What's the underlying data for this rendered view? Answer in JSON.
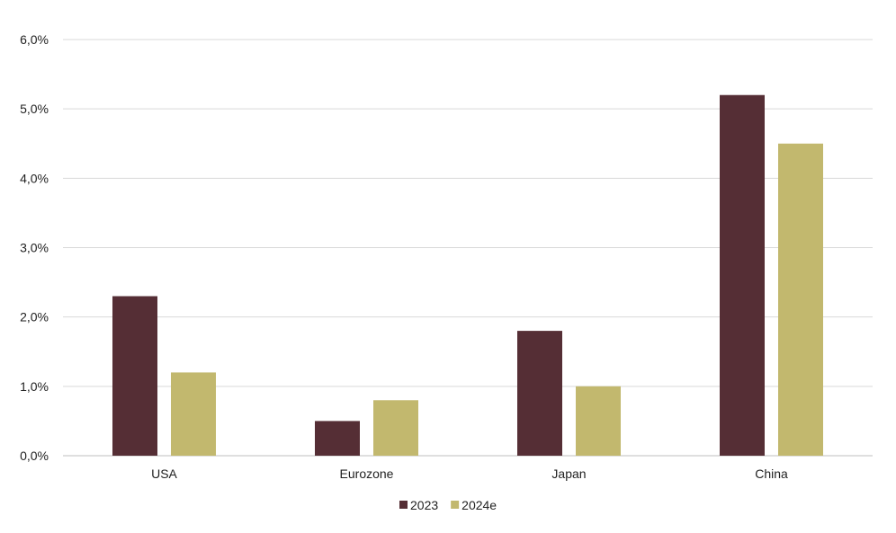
{
  "chart_data": {
    "type": "bar",
    "title": "",
    "xlabel": "",
    "ylabel": "",
    "categories": [
      "USA",
      "Eurozone",
      "Japan",
      "China"
    ],
    "series": [
      {
        "name": "2023",
        "values": [
          2.3,
          0.5,
          1.8,
          5.2
        ],
        "color": "#552e35"
      },
      {
        "name": "2024e",
        "values": [
          1.2,
          0.8,
          1.0,
          4.5
        ],
        "color": "#c2b86e"
      }
    ],
    "ylim": [
      0,
      6
    ],
    "yticks": [
      "0,0%",
      "1,0%",
      "2,0%",
      "3,0%",
      "4,0%",
      "5,0%",
      "6,0%"
    ],
    "grid": true,
    "legend_position": "bottom"
  }
}
